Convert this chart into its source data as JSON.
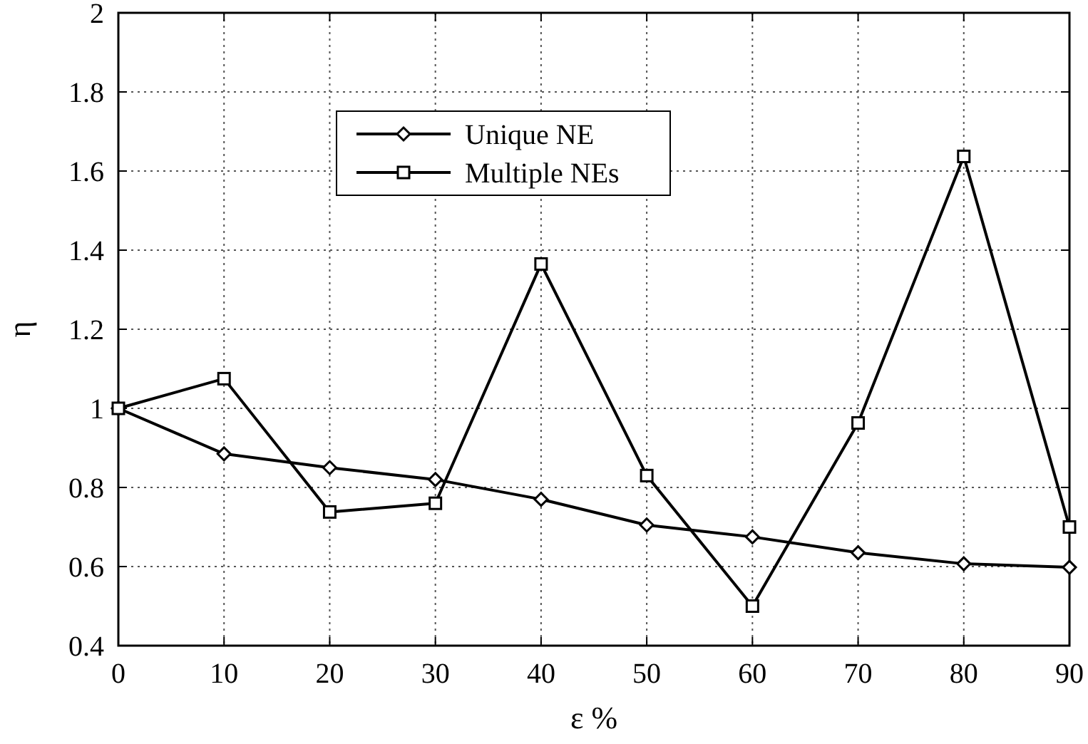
{
  "chart_data": {
    "type": "line",
    "xlabel": "ε %",
    "ylabel": "η",
    "x": [
      0,
      10,
      20,
      30,
      40,
      50,
      60,
      70,
      80,
      90
    ],
    "series": [
      {
        "name": "Unique NE",
        "color": "#000000",
        "marker": "diamond",
        "values": [
          1.0,
          0.885,
          0.85,
          0.82,
          0.77,
          0.705,
          0.675,
          0.635,
          0.607,
          0.598
        ]
      },
      {
        "name": "Multiple NEs",
        "color": "#000000",
        "marker": "square",
        "values": [
          1.0,
          1.075,
          0.738,
          0.76,
          1.365,
          0.83,
          0.5,
          0.963,
          1.637,
          0.7
        ]
      }
    ],
    "xlim": [
      0,
      90
    ],
    "xticks": [
      0,
      10,
      20,
      30,
      40,
      50,
      60,
      70,
      80,
      90
    ],
    "ylim": [
      0.4,
      2
    ],
    "yticks": [
      0.4,
      0.6,
      0.8,
      1,
      1.2,
      1.4,
      1.6,
      1.8,
      2
    ],
    "grid": true,
    "legend": "top left",
    "line_style": "solid"
  }
}
